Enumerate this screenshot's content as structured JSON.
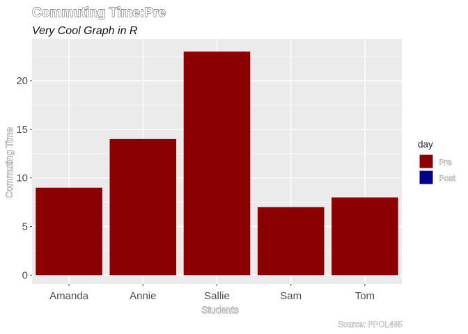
{
  "chart_data": {
    "type": "bar",
    "title": "Commuting Time:Pre",
    "subtitle": "Very Cool Graph in R",
    "xlabel": "Students",
    "ylabel": "Commuting Time",
    "caption": "Source: PPOL485",
    "categories": [
      "Amanda",
      "Annie",
      "Sallie",
      "Sam",
      "Tom"
    ],
    "series": [
      {
        "name": "Pre",
        "values": [
          9,
          14,
          23,
          7,
          8
        ],
        "color": "#8B0000"
      }
    ],
    "ylim": [
      -0.9,
      24.3
    ],
    "yticks": [
      0,
      5,
      10,
      15,
      20
    ],
    "grid": true,
    "panel_background": "#EBEBEB",
    "legend": {
      "title": "day",
      "position": "right",
      "entries": [
        {
          "label": "Pre",
          "color": "#8B0000"
        },
        {
          "label": "Post",
          "color": "#00008B"
        }
      ]
    }
  }
}
